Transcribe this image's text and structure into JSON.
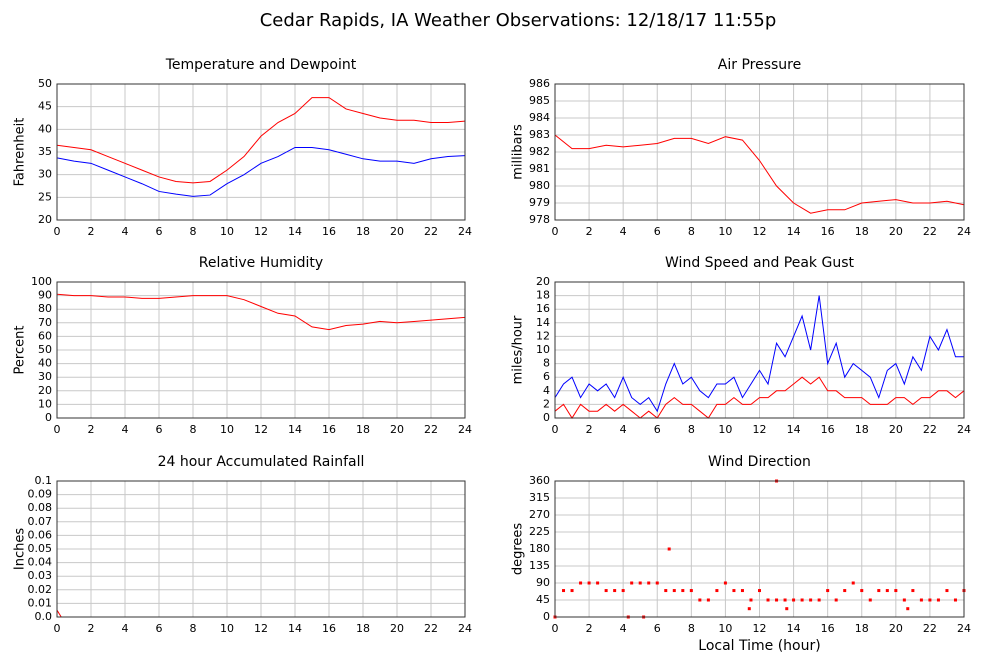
{
  "title": "Cedar Rapids, IA Weather Observations: 12/18/17 11:55p",
  "chart_data": [
    {
      "type": "line",
      "title": "Temperature and Dewpoint",
      "ylabel": "Fahrenheit",
      "x": [
        0,
        1,
        2,
        3,
        4,
        5,
        6,
        7,
        8,
        9,
        10,
        11,
        12,
        13,
        14,
        15,
        16,
        17,
        18,
        19,
        20,
        21,
        22,
        23,
        24
      ],
      "series": [
        {
          "color": "#ff0000",
          "values": [
            36.5,
            36,
            35.5,
            34,
            32.5,
            31,
            29.5,
            28.5,
            28.2,
            28.5,
            31,
            34,
            38.5,
            41.5,
            43.5,
            47,
            47,
            44.5,
            43.5,
            42.5,
            42,
            42,
            41.5,
            41.5,
            41.8
          ]
        },
        {
          "color": "#0000ff",
          "values": [
            33.7,
            33,
            32.5,
            31,
            29.5,
            28,
            26.3,
            25.7,
            25.2,
            25.5,
            28,
            30,
            32.5,
            34,
            36,
            36,
            35.5,
            34.5,
            33.5,
            33,
            33,
            32.5,
            33.5,
            34,
            34.2
          ]
        }
      ],
      "xlim": [
        0,
        24
      ],
      "xticks": [
        0,
        2,
        4,
        6,
        8,
        10,
        12,
        14,
        16,
        18,
        20,
        22,
        24
      ],
      "ylim": [
        20,
        50
      ],
      "yticks": [
        20,
        25,
        30,
        35,
        40,
        45,
        50
      ],
      "grid": true
    },
    {
      "type": "line",
      "title": "Air Pressure",
      "ylabel": "millibars",
      "x": [
        0,
        1,
        2,
        3,
        4,
        5,
        6,
        7,
        8,
        9,
        10,
        11,
        12,
        13,
        14,
        15,
        16,
        17,
        18,
        19,
        20,
        21,
        22,
        23,
        24
      ],
      "series": [
        {
          "color": "#ff0000",
          "values": [
            983,
            982.2,
            982.2,
            982.4,
            982.3,
            982.4,
            982.5,
            982.8,
            982.8,
            982.5,
            982.9,
            982.7,
            981.5,
            980,
            979,
            978.4,
            978.6,
            978.6,
            979,
            979.1,
            979.2,
            979,
            979,
            979.1,
            978.9
          ]
        }
      ],
      "xlim": [
        0,
        24
      ],
      "xticks": [
        0,
        2,
        4,
        6,
        8,
        10,
        12,
        14,
        16,
        18,
        20,
        22,
        24
      ],
      "ylim": [
        978,
        986
      ],
      "yticks": [
        978,
        979,
        980,
        981,
        982,
        983,
        984,
        985,
        986
      ],
      "grid": true
    },
    {
      "type": "line",
      "title": "Relative Humidity",
      "ylabel": "Percent",
      "x": [
        0,
        1,
        2,
        3,
        4,
        5,
        6,
        7,
        8,
        9,
        10,
        11,
        12,
        13,
        14,
        15,
        16,
        17,
        18,
        19,
        20,
        21,
        22,
        23,
        24
      ],
      "series": [
        {
          "color": "#ff0000",
          "values": [
            91,
            90,
            90,
            89,
            89,
            88,
            88,
            89,
            90,
            90,
            90,
            87,
            82,
            77,
            75,
            67,
            65,
            68,
            69,
            71,
            70,
            71,
            72,
            73,
            74
          ]
        }
      ],
      "xlim": [
        0,
        24
      ],
      "xticks": [
        0,
        2,
        4,
        6,
        8,
        10,
        12,
        14,
        16,
        18,
        20,
        22,
        24
      ],
      "ylim": [
        0,
        100
      ],
      "yticks": [
        0,
        10,
        20,
        30,
        40,
        50,
        60,
        70,
        80,
        90,
        100
      ],
      "grid": true
    },
    {
      "type": "line",
      "title": "Wind Speed and Peak Gust",
      "ylabel": "miles/hour",
      "x": [
        0,
        0.5,
        1,
        1.5,
        2,
        2.5,
        3,
        3.5,
        4,
        4.5,
        5,
        5.5,
        6,
        6.5,
        7,
        7.5,
        8,
        8.5,
        9,
        9.5,
        10,
        10.5,
        11,
        11.5,
        12,
        12.5,
        13,
        13.5,
        14,
        14.5,
        15,
        15.5,
        16,
        16.5,
        17,
        17.5,
        18,
        18.5,
        19,
        19.5,
        20,
        20.5,
        21,
        21.5,
        22,
        22.5,
        23,
        23.5,
        24
      ],
      "series": [
        {
          "color": "#0000ff",
          "values": [
            3,
            5,
            6,
            3,
            5,
            4,
            5,
            3,
            6,
            3,
            2,
            3,
            1,
            5,
            8,
            5,
            6,
            4,
            3,
            5,
            5,
            6,
            3,
            5,
            7,
            5,
            11,
            9,
            12,
            15,
            10,
            18,
            8,
            11,
            6,
            8,
            7,
            6,
            3,
            7,
            8,
            5,
            9,
            7,
            12,
            10,
            13,
            9,
            9
          ]
        },
        {
          "color": "#ff0000",
          "values": [
            1,
            2,
            0,
            2,
            1,
            1,
            2,
            1,
            2,
            1,
            0,
            1,
            0,
            2,
            3,
            2,
            2,
            1,
            0,
            2,
            2,
            3,
            2,
            2,
            3,
            3,
            4,
            4,
            5,
            6,
            5,
            6,
            4,
            4,
            3,
            3,
            3,
            2,
            2,
            2,
            3,
            3,
            2,
            3,
            3,
            4,
            4,
            3,
            4
          ]
        }
      ],
      "xlim": [
        0,
        24
      ],
      "xticks": [
        0,
        2,
        4,
        6,
        8,
        10,
        12,
        14,
        16,
        18,
        20,
        22,
        24
      ],
      "ylim": [
        0,
        20
      ],
      "yticks": [
        0,
        2,
        4,
        6,
        8,
        10,
        12,
        14,
        16,
        18,
        20
      ],
      "grid": true
    },
    {
      "type": "line",
      "title": "24 hour Accumulated Rainfall",
      "ylabel": "Inches",
      "x": [
        0,
        0.25,
        24
      ],
      "series": [
        {
          "color": "#ff0000",
          "values": [
            0.005,
            0,
            0
          ]
        }
      ],
      "xlim": [
        0,
        24
      ],
      "xticks": [
        0,
        2,
        4,
        6,
        8,
        10,
        12,
        14,
        16,
        18,
        20,
        22,
        24
      ],
      "ylim": [
        0,
        0.1
      ],
      "yticks": [
        {
          "value": 0,
          "label": "0.0"
        },
        0.01,
        0.02,
        0.03,
        0.04,
        0.05,
        0.06,
        0.07,
        0.08,
        0.09,
        0.1
      ],
      "grid": true
    },
    {
      "type": "scatter",
      "title": "Wind Direction",
      "ylabel": "degrees",
      "xlabel": "Local Time (hour)",
      "x": [
        0,
        0.5,
        1,
        1.5,
        2,
        2.5,
        3,
        3.5,
        4,
        4.5,
        5,
        5.5,
        6,
        6.5,
        7,
        7.5,
        8,
        8.5,
        9,
        9.5,
        10,
        10.5,
        11,
        11.5,
        12,
        12.5,
        13,
        13.5,
        14,
        14.5,
        15,
        15.5,
        16,
        16.5,
        17,
        17.5,
        18,
        18.5,
        19,
        19.5,
        20,
        20.5,
        21,
        21.5,
        22,
        22.5,
        23,
        23.5,
        24,
        6.7,
        13,
        4.3,
        5.2,
        20.7,
        13.6,
        11.4
      ],
      "series": [
        {
          "color": "#ff0000",
          "values": [
            0,
            70,
            70,
            90,
            90,
            90,
            70,
            70,
            70,
            90,
            90,
            90,
            90,
            70,
            70,
            70,
            70,
            45,
            45,
            70,
            90,
            70,
            70,
            45,
            70,
            45,
            45,
            45,
            45,
            45,
            45,
            45,
            70,
            45,
            70,
            90,
            70,
            45,
            70,
            70,
            70,
            45,
            70,
            45,
            45,
            45,
            70,
            45,
            70,
            180,
            360,
            0,
            0,
            22,
            22,
            22
          ]
        }
      ],
      "xlim": [
        0,
        24
      ],
      "xticks": [
        0,
        2,
        4,
        6,
        8,
        10,
        12,
        14,
        16,
        18,
        20,
        22,
        24
      ],
      "ylim": [
        0,
        360
      ],
      "yticks": [
        0,
        45,
        90,
        135,
        180,
        225,
        270,
        315,
        360
      ],
      "grid": true
    }
  ]
}
